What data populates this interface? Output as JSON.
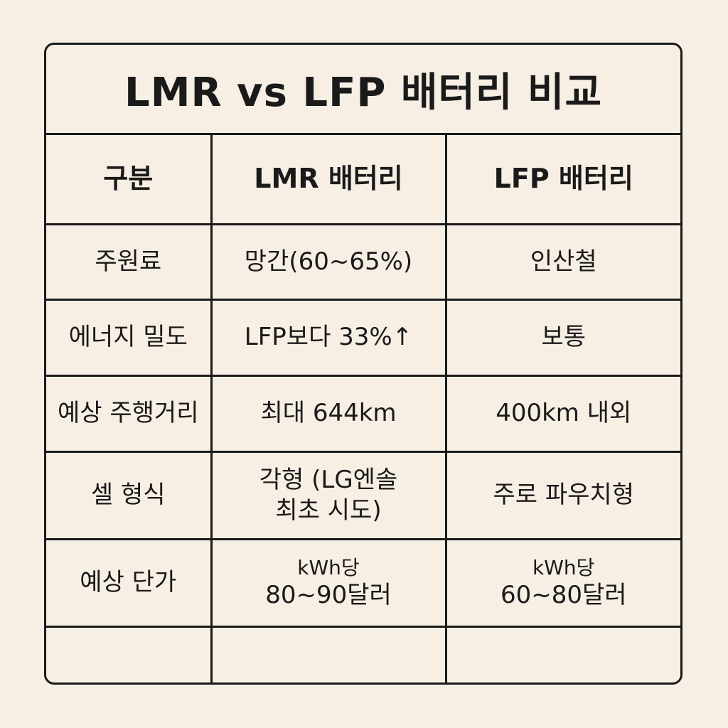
{
  "title": "LMR vs LFP 배터리 비교",
  "table": {
    "headers": [
      "구분",
      "LMR 배터리",
      "LFP 배터리"
    ],
    "rows": [
      {
        "label": "주원료",
        "lmr": "망간(60~65%)",
        "lfp": "인산철"
      },
      {
        "label": "에너지 밀도",
        "lmr": "LFP보다 33%↑",
        "lfp": "보통"
      },
      {
        "label": "예상 주행거리",
        "lmr": "최대 644km",
        "lfp": "400km 내외"
      },
      {
        "label": "셀 형식",
        "lmr_line1": "각형 (LG엔솔",
        "lmr_line2": "최초 시도)",
        "lfp": "주로 파우치형"
      },
      {
        "label": "예상 단가",
        "lmr_line1": "kWh당",
        "lmr_line2": "80~90달러",
        "lfp_line1": "kWh당",
        "lfp_line2": "60~80달러"
      }
    ]
  }
}
